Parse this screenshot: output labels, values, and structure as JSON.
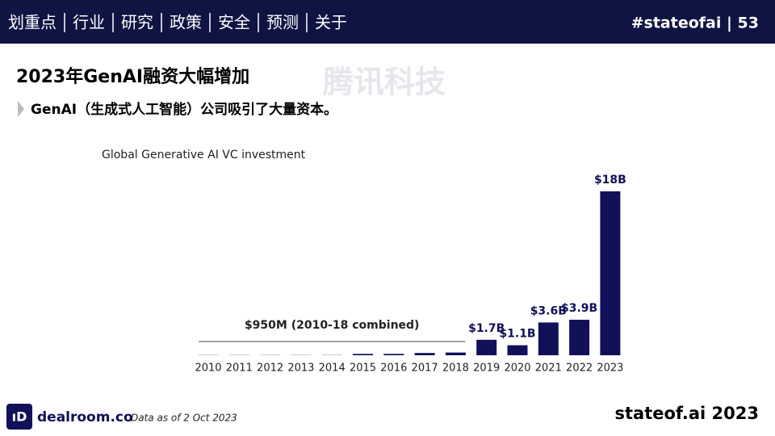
{
  "header": {
    "nav": [
      "划重点",
      "行业",
      "研究",
      "政策",
      "安全",
      "预测",
      "关于"
    ],
    "tag": "#stateofai | 53"
  },
  "heading": "2023年GenAI融资大幅增加",
  "bullet": "GenAI（生成式人工智能）公司吸引了大量资本。",
  "watermark": "腾讯科技",
  "chart_data": {
    "type": "bar",
    "title": "Global Generative AI VC investment",
    "categories": [
      "2010",
      "2011",
      "2012",
      "2013",
      "2014",
      "2015",
      "2016",
      "2017",
      "2018",
      "2019",
      "2020",
      "2021",
      "2022",
      "2023"
    ],
    "values": [
      0.02,
      0.02,
      0.02,
      0.02,
      0.02,
      0.15,
      0.15,
      0.25,
      0.3,
      1.7,
      1.1,
      3.6,
      3.9,
      18
    ],
    "value_labels": [
      null,
      null,
      null,
      null,
      null,
      null,
      null,
      null,
      null,
      "$1.7B",
      "$1.1B",
      "$3.6B",
      "$3.9B",
      "$18B"
    ],
    "color": "#11115a",
    "annotation": "$950M (2010-18 combined)"
  },
  "footer": {
    "source": "dealroom.co",
    "note": "Data as of 2 Oct 2023",
    "brand": "stateof.ai 2023"
  }
}
